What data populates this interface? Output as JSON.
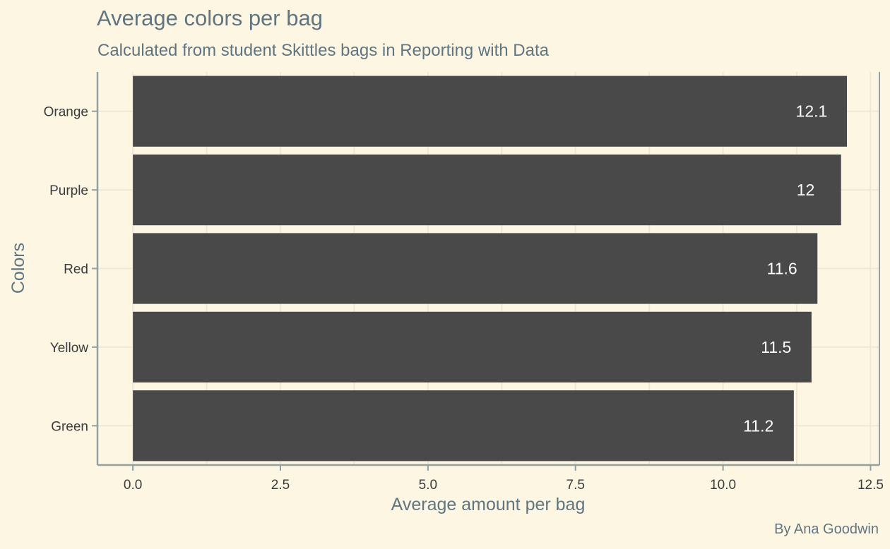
{
  "colors": {
    "background": "#fdf6e3",
    "bar": "#494949",
    "grid": "#efe8d4",
    "axis_line": "#93a1a1",
    "title_text": "#5f7681",
    "tick_text": "#3c3c3c",
    "bar_label_text": "#ffffff"
  },
  "chart_data": {
    "type": "bar",
    "orientation": "horizontal",
    "title": "Average colors per bag",
    "subtitle": "Calculated from student Skittles bags in Reporting with Data",
    "caption": "By Ana Goodwin",
    "xlabel": "Average amount per bag",
    "ylabel": "Colors",
    "categories": [
      "Orange",
      "Purple",
      "Red",
      "Yellow",
      "Green"
    ],
    "values": [
      12.1,
      12.0,
      11.6,
      11.5,
      11.2
    ],
    "data_labels": [
      "12.1",
      "12",
      "11.6",
      "11.5",
      "11.2"
    ],
    "xlim": [
      -0.6,
      12.65
    ],
    "xticks": [
      0,
      2.5,
      5,
      7.5,
      10,
      12.5
    ],
    "xtick_labels": [
      "0.0",
      "2.5",
      "5.0",
      "7.5",
      "10.0",
      "12.5"
    ],
    "grid": true,
    "legend": "none"
  }
}
